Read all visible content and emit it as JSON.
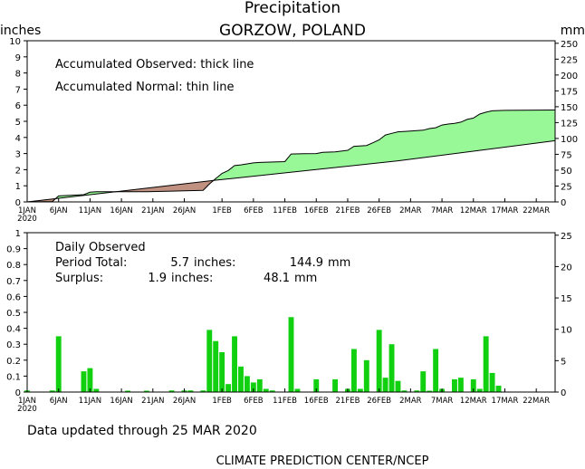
{
  "title": "Precipitation",
  "location": "GORZOW, POLAND",
  "footer": {
    "updated": "Data updated through 25 MAR 2020",
    "credit": "CLIMATE PREDICTION CENTER/NCEP"
  },
  "colors": {
    "surplus_fill": "#98f898",
    "deficit_fill": "#c09080",
    "daily_bar": "#10d010",
    "line": "#000000"
  },
  "x_ticks": [
    {
      "day": 1,
      "label": "1JAN",
      "sub": "2020"
    },
    {
      "day": 6,
      "label": "6JAN"
    },
    {
      "day": 11,
      "label": "11JAN"
    },
    {
      "day": 16,
      "label": "16JAN"
    },
    {
      "day": 21,
      "label": "21JAN"
    },
    {
      "day": 26,
      "label": "26JAN"
    },
    {
      "day": 32,
      "label": "1FEB"
    },
    {
      "day": 37,
      "label": "6FEB"
    },
    {
      "day": 42,
      "label": "11FEB"
    },
    {
      "day": 47,
      "label": "16FEB"
    },
    {
      "day": 52,
      "label": "21FEB"
    },
    {
      "day": 57,
      "label": "26FEB"
    },
    {
      "day": 62,
      "label": "2MAR"
    },
    {
      "day": 67,
      "label": "7MAR"
    },
    {
      "day": 72,
      "label": "12MAR"
    },
    {
      "day": 77,
      "label": "17MAR"
    },
    {
      "day": 82,
      "label": "22MAR"
    }
  ],
  "chart_data": [
    {
      "type": "area",
      "name": "accumulated",
      "title": "Precipitation",
      "ylabel_left": "inches",
      "ylabel_right": "mm",
      "annotations": [
        "Accumulated Observed: thick line",
        "Accumulated Normal: thin line"
      ],
      "x_unit": "day of year 2020",
      "ylim": [
        0,
        10
      ],
      "yticks_left": [
        0,
        1,
        2,
        3,
        4,
        5,
        6,
        7,
        8,
        9,
        10
      ],
      "yticks_right": [
        0,
        25,
        50,
        75,
        100,
        125,
        150,
        175,
        200,
        225,
        250
      ],
      "observed": [
        [
          1,
          0
        ],
        [
          5,
          0.02
        ],
        [
          6,
          0.37
        ],
        [
          10,
          0.45
        ],
        [
          11,
          0.6
        ],
        [
          12,
          0.63
        ],
        [
          20,
          0.63
        ],
        [
          24,
          0.67
        ],
        [
          26,
          0.69
        ],
        [
          29,
          0.72
        ],
        [
          30,
          1.12
        ],
        [
          31,
          1.45
        ],
        [
          32,
          1.77
        ],
        [
          33,
          1.95
        ],
        [
          34,
          2.25
        ],
        [
          35,
          2.3
        ],
        [
          37,
          2.42
        ],
        [
          38,
          2.45
        ],
        [
          42,
          2.5
        ],
        [
          43,
          2.97
        ],
        [
          45,
          2.99
        ],
        [
          47,
          3.0
        ],
        [
          48,
          3.08
        ],
        [
          50,
          3.1
        ],
        [
          52,
          3.2
        ],
        [
          53,
          3.45
        ],
        [
          55,
          3.5
        ],
        [
          56,
          3.67
        ],
        [
          57,
          3.85
        ],
        [
          58,
          4.15
        ],
        [
          59,
          4.25
        ],
        [
          60,
          4.35
        ],
        [
          62,
          4.4
        ],
        [
          64,
          4.45
        ],
        [
          65,
          4.55
        ],
        [
          66,
          4.6
        ],
        [
          67,
          4.77
        ],
        [
          68,
          4.83
        ],
        [
          69,
          4.87
        ],
        [
          70,
          4.95
        ],
        [
          71,
          5.12
        ],
        [
          72,
          5.2
        ],
        [
          73,
          5.45
        ],
        [
          74,
          5.57
        ],
        [
          75,
          5.65
        ],
        [
          77,
          5.68
        ],
        [
          85,
          5.7
        ]
      ],
      "normal": [
        [
          1,
          0
        ],
        [
          31,
          1.35
        ],
        [
          60,
          2.55
        ],
        [
          85,
          3.8
        ]
      ]
    },
    {
      "type": "bar",
      "name": "daily",
      "annotations": [
        "Daily Observed"
      ],
      "period_total": {
        "label": "Period Total:",
        "inches": "5.7",
        "mm": "144.9"
      },
      "surplus": {
        "label": "Surplus:",
        "inches": "1.9",
        "mm": "48.1"
      },
      "ylim": [
        0,
        1
      ],
      "yticks_left": [
        0,
        0.1,
        0.2,
        0.3,
        0.4,
        0.5,
        0.6,
        0.7,
        0.8,
        0.9,
        1
      ],
      "yticks_right": [
        0,
        5,
        10,
        15,
        20,
        25
      ],
      "values_by_day": [
        [
          1,
          0.01
        ],
        [
          5,
          0.01
        ],
        [
          6,
          0.35
        ],
        [
          10,
          0.13
        ],
        [
          11,
          0.15
        ],
        [
          12,
          0.02
        ],
        [
          17,
          0.0
        ],
        [
          20,
          0.0
        ],
        [
          24,
          0.01
        ],
        [
          26,
          0.01
        ],
        [
          27,
          0.01
        ],
        [
          29,
          0.01
        ],
        [
          30,
          0.39
        ],
        [
          31,
          0.32
        ],
        [
          32,
          0.25
        ],
        [
          33,
          0.05
        ],
        [
          34,
          0.35
        ],
        [
          35,
          0.16
        ],
        [
          36,
          0.1
        ],
        [
          37,
          0.06
        ],
        [
          38,
          0.08
        ],
        [
          39,
          0.02
        ],
        [
          40,
          0.01
        ],
        [
          43,
          0.47
        ],
        [
          44,
          0.02
        ],
        [
          47,
          0.08
        ],
        [
          50,
          0.08
        ],
        [
          52,
          0.02
        ],
        [
          53,
          0.27
        ],
        [
          54,
          0.02
        ],
        [
          55,
          0.2
        ],
        [
          57,
          0.39
        ],
        [
          58,
          0.09
        ],
        [
          59,
          0.3
        ],
        [
          60,
          0.07
        ],
        [
          61,
          0.01
        ],
        [
          63,
          0.01
        ],
        [
          64,
          0.13
        ],
        [
          65,
          0.0
        ],
        [
          66,
          0.27
        ],
        [
          67,
          0.02
        ],
        [
          69,
          0.08
        ],
        [
          70,
          0.09
        ],
        [
          72,
          0.08
        ],
        [
          73,
          0.02
        ],
        [
          74,
          0.35
        ],
        [
          75,
          0.12
        ],
        [
          76,
          0.04
        ]
      ]
    }
  ]
}
